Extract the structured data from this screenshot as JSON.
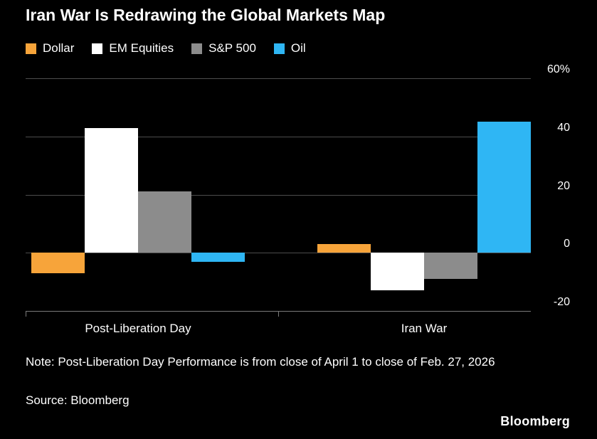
{
  "chart_data": {
    "type": "bar",
    "title": "Iran War Is Redrawing the Global Markets Map",
    "categories": [
      "Post-Liberation Day",
      "Iran War"
    ],
    "series": [
      {
        "name": "Dollar",
        "color": "#f7a43a",
        "values": [
          -7,
          3
        ]
      },
      {
        "name": "EM Equities",
        "color": "#ffffff",
        "values": [
          43,
          -13
        ]
      },
      {
        "name": "S&P 500",
        "color": "#8c8c8c",
        "values": [
          21,
          -9
        ]
      },
      {
        "name": "Oil",
        "color": "#2fb6f4",
        "values": [
          -3,
          45
        ]
      }
    ],
    "ylim": [
      -20,
      60
    ],
    "yticks": [
      60,
      40,
      20,
      0,
      -20
    ],
    "ytick_labels": [
      "60%",
      "40",
      "20",
      "0",
      "-20"
    ],
    "unit": "%",
    "grid": true,
    "legend_position": "top-left",
    "axis_side": "right",
    "background_color": "#000000",
    "grid_color": "#4d4d4d",
    "text_color": "#ffffff"
  },
  "footer": {
    "note": "Note: Post-Liberation Day Performance is from close of April 1 to close of Feb. 27, 2026",
    "source": "Source: Bloomberg",
    "brand": "Bloomberg"
  }
}
